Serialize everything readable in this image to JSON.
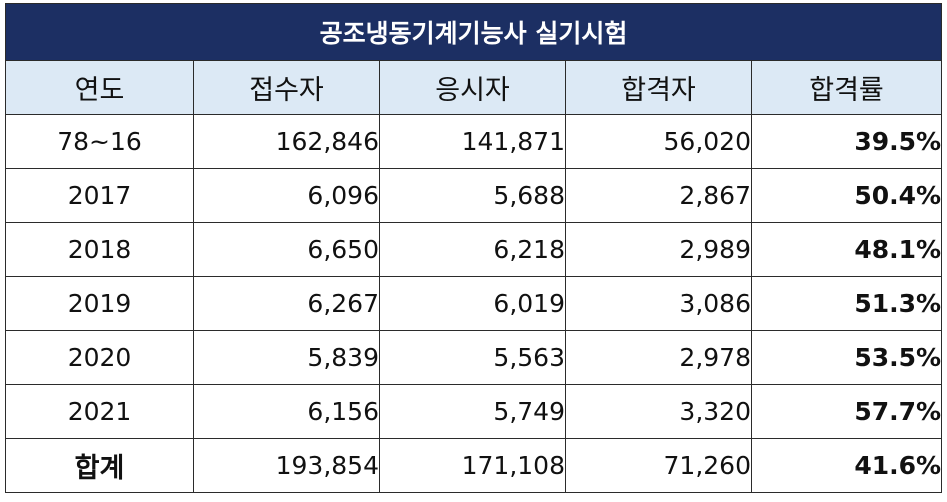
{
  "table": {
    "title": "공조냉동기계기능사 실기시험",
    "headers": [
      "연도",
      "접수자",
      "응시자",
      "합격자",
      "합격률"
    ],
    "rows": [
      [
        "78~16",
        "162,846",
        "141,871",
        "56,020",
        "39.5%"
      ],
      [
        "2017",
        "6,096",
        "5,688",
        "2,867",
        "50.4%"
      ],
      [
        "2018",
        "6,650",
        "6,218",
        "2,989",
        "48.1%"
      ],
      [
        "2019",
        "6,267",
        "6,019",
        "3,086",
        "51.3%"
      ],
      [
        "2020",
        "5,839",
        "5,563",
        "2,978",
        "53.5%"
      ],
      [
        "2021",
        "6,156",
        "5,749",
        "3,320",
        "57.7%"
      ],
      [
        "합계",
        "193,854",
        "171,108",
        "71,260",
        "41.6%"
      ]
    ]
  },
  "colors": {
    "title_background": "#1c2f63",
    "header_background": "#dce9f5",
    "border": "#2b2b2b"
  }
}
